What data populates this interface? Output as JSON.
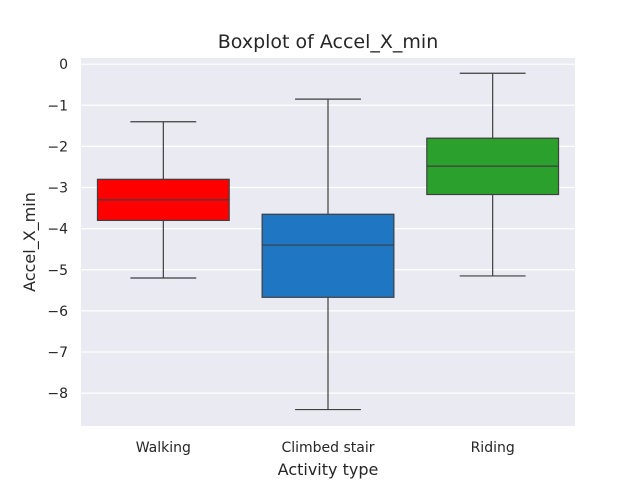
{
  "chart_data": {
    "type": "boxplot",
    "title": "Boxplot of Accel_X_min",
    "xlabel": "Activity type",
    "ylabel": "Accel_X_min",
    "ylim": [
      -8.8,
      0.15
    ],
    "yticks": [
      0,
      -1,
      -2,
      -3,
      -4,
      -5,
      -6,
      -7,
      -8
    ],
    "ytick_labels": [
      "0",
      "−1",
      "−2",
      "−3",
      "−4",
      "−5",
      "−6",
      "−7",
      "−8"
    ],
    "grid": true,
    "categories": [
      "Walking",
      "Climbed stair",
      "Riding"
    ],
    "boxes": [
      {
        "category": "Walking",
        "whisker_low": -5.2,
        "q1": -3.8,
        "median": -3.3,
        "q3": -2.8,
        "whisker_high": -1.4,
        "color": "#ff0000"
      },
      {
        "category": "Climbed stair",
        "whisker_low": -8.4,
        "q1": -5.67,
        "median": -4.4,
        "q3": -3.65,
        "whisker_high": -0.85,
        "color": "#1f77c4"
      },
      {
        "category": "Riding",
        "whisker_low": -5.15,
        "q1": -3.17,
        "median": -2.48,
        "q3": -1.8,
        "whisker_high": -0.22,
        "color": "#2ca02c"
      }
    ]
  },
  "colors": {
    "plot_background": "#eaeaf2",
    "grid": "#ffffff",
    "line": "#3f3f3f"
  }
}
